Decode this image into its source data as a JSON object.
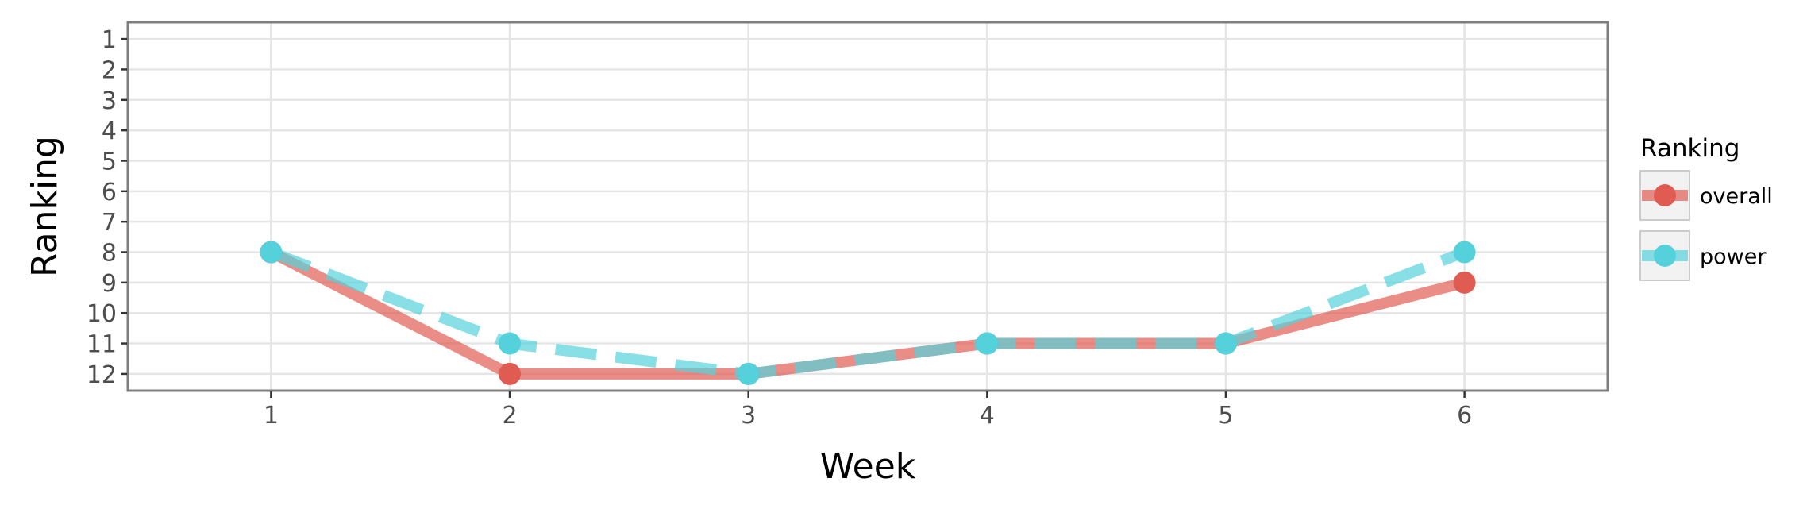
{
  "chart_data": {
    "type": "line",
    "xlabel": "Week",
    "ylabel": "Ranking",
    "x": [
      1,
      2,
      3,
      4,
      5,
      6
    ],
    "xlim": [
      0.4,
      6.6
    ],
    "ylim": [
      12.55,
      0.45
    ],
    "y_reversed": true,
    "x_ticks": [
      "1",
      "2",
      "3",
      "4",
      "5",
      "6"
    ],
    "y_ticks": [
      "1",
      "2",
      "3",
      "4",
      "5",
      "6",
      "7",
      "8",
      "9",
      "10",
      "11",
      "12"
    ],
    "grid": true,
    "legend": {
      "title": "Ranking",
      "position": "right"
    },
    "series": [
      {
        "name": "overall",
        "values": [
          8,
          12,
          12,
          11,
          11,
          9
        ],
        "color": "#e05c53",
        "line_style": "solid"
      },
      {
        "name": "power",
        "values": [
          8,
          11,
          12,
          11,
          11,
          8
        ],
        "color": "#55d1dc",
        "line_style": "dashed"
      }
    ]
  }
}
